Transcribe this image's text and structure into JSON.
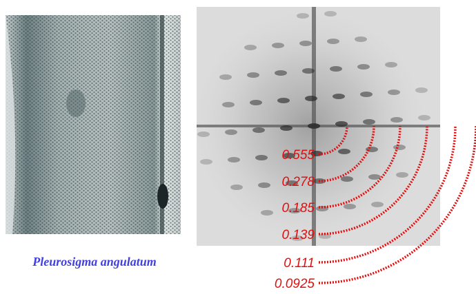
{
  "caption": "Pleurosigma angulatum",
  "labels": [
    "0.555",
    "0.278",
    "0.185",
    "0.139",
    "0.111",
    "0.0925"
  ]
}
